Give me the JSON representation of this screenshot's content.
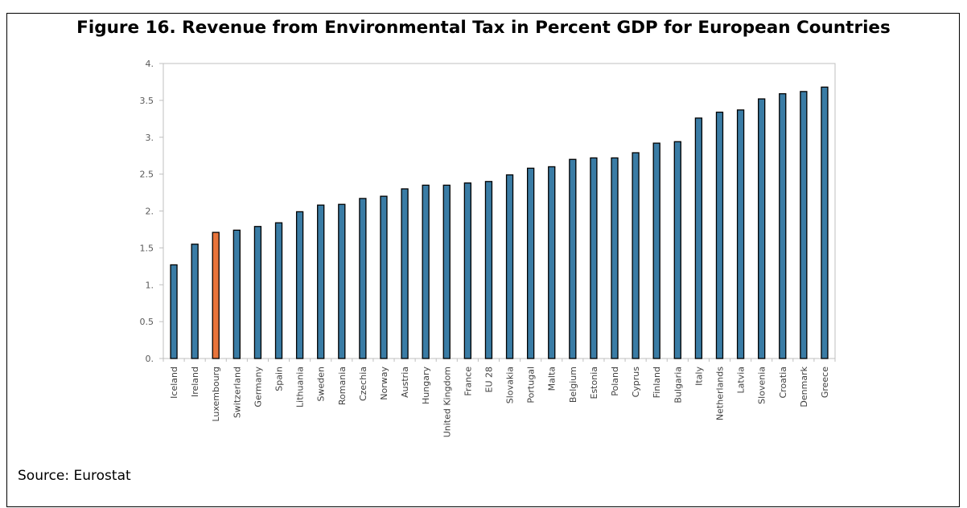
{
  "figure": {
    "title": "Figure 16. Revenue from Environmental Tax in Percent GDP for European Countries",
    "source": "Source: Eurostat"
  },
  "colors": {
    "bar": "#3a7ca5",
    "highlight": "#e8743b",
    "bar_outline": "#000000",
    "axis": "#bfbfbf"
  },
  "chart_data": {
    "type": "bar",
    "categories": [
      "Iceland",
      "Ireland",
      "Luxembourg",
      "Switzerland",
      "Germany",
      "Spain",
      "Lithuania",
      "Sweden",
      "Romania",
      "Czechia",
      "Norway",
      "Austria",
      "Hungary",
      "United Kingdom",
      "France",
      "EU 28",
      "Slovakia",
      "Portugal",
      "Malta",
      "Belgium",
      "Estonia",
      "Poland",
      "Cyprus",
      "Finland",
      "Bulgaria",
      "Italy",
      "Netherlands",
      "Latvia",
      "Slovenia",
      "Croatia",
      "Denmark",
      "Greece"
    ],
    "values": [
      1.27,
      1.55,
      1.71,
      1.74,
      1.79,
      1.84,
      1.99,
      2.08,
      2.09,
      2.17,
      2.2,
      2.3,
      2.35,
      2.35,
      2.38,
      2.4,
      2.49,
      2.58,
      2.6,
      2.7,
      2.72,
      2.72,
      2.79,
      2.92,
      2.94,
      3.26,
      3.34,
      3.37,
      3.52,
      3.59,
      3.62,
      3.68
    ],
    "highlight": "Luxembourg",
    "ylim": [
      0,
      4
    ],
    "yticks": [
      0,
      0.5,
      1,
      1.5,
      2,
      2.5,
      3,
      3.5,
      4
    ],
    "ytick_labels": [
      "0.",
      "0.5",
      "1.",
      "1.5",
      "2.",
      "2.5",
      "3.",
      "3.5",
      "4."
    ],
    "title": "",
    "xlabel": "",
    "ylabel": "",
    "grid": false
  }
}
